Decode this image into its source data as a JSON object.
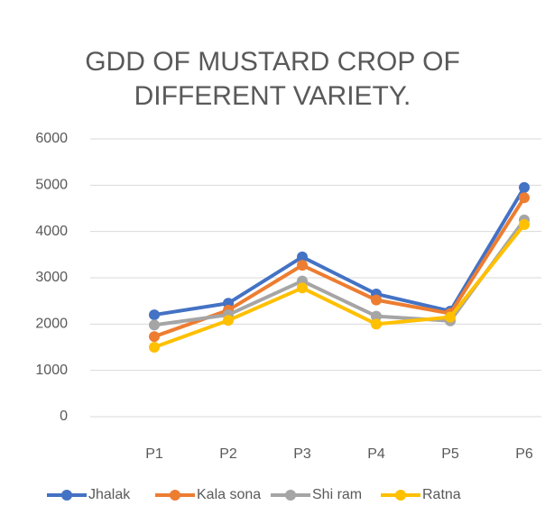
{
  "chart_data": {
    "type": "line",
    "title": "GDD OF MUSTARD CROP OF DIFFERENT VARIETY.",
    "categories": [
      "P1",
      "P2",
      "P3",
      "P4",
      "P5",
      "P6"
    ],
    "series": [
      {
        "name": "Jhalak",
        "color": "#4472c4",
        "values": [
          2200,
          2450,
          3450,
          2650,
          2280,
          4950
        ]
      },
      {
        "name": "Kala sona",
        "color": "#ed7d31",
        "values": [
          1730,
          2300,
          3270,
          2520,
          2230,
          4730
        ]
      },
      {
        "name": "Shi ram",
        "color": "#a5a5a5",
        "values": [
          1980,
          2200,
          2930,
          2170,
          2070,
          4250
        ]
      },
      {
        "name": "Ratna",
        "color": "#ffc000",
        "values": [
          1500,
          2080,
          2780,
          2000,
          2150,
          4150
        ]
      }
    ],
    "ylim": [
      0,
      6000
    ],
    "yticks": [
      0,
      1000,
      2000,
      3000,
      4000,
      5000,
      6000
    ],
    "grid": true,
    "legend": "bottom"
  }
}
